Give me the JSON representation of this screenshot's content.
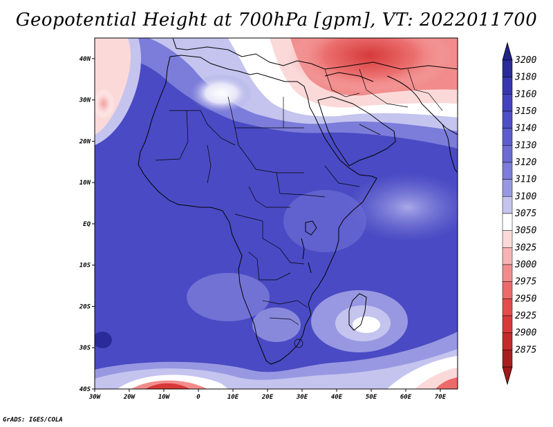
{
  "title": "Geopotential Height at 700hPa [gpm], VT: 2022011700",
  "credit": "GrADS: IGES/COLA",
  "map": {
    "lat_labels": [
      "40N",
      "30N",
      "20N",
      "10N",
      "EQ",
      "10S",
      "20S",
      "30S",
      "40S"
    ],
    "lon_labels": [
      "30W",
      "20W",
      "10W",
      "0",
      "10E",
      "20E",
      "30E",
      "40E",
      "50E",
      "60E",
      "70E"
    ],
    "lat_range": [
      -40,
      45
    ],
    "lon_range": [
      -30,
      75
    ]
  },
  "legend": {
    "levels": [
      "3200",
      "3180",
      "3160",
      "3150",
      "3140",
      "3130",
      "3120",
      "3110",
      "3100",
      "3075",
      "3050",
      "3025",
      "3000",
      "2975",
      "2950",
      "2925",
      "2900",
      "2875"
    ],
    "colors": [
      "#2a2a99",
      "#3636b0",
      "#4242c0",
      "#4e4ec8",
      "#5c5cce",
      "#6b6bd4",
      "#7c7cda",
      "#9898e2",
      "#c4c4ef",
      "#ffffff",
      "#fbd9d9",
      "#f7b4b4",
      "#f28c8c",
      "#ec6a6a",
      "#e44c4c",
      "#d83838",
      "#c42a2a",
      "#a81e1e"
    ],
    "top_arrow_color": "#22228a",
    "bottom_arrow_color": "#a01818"
  }
}
